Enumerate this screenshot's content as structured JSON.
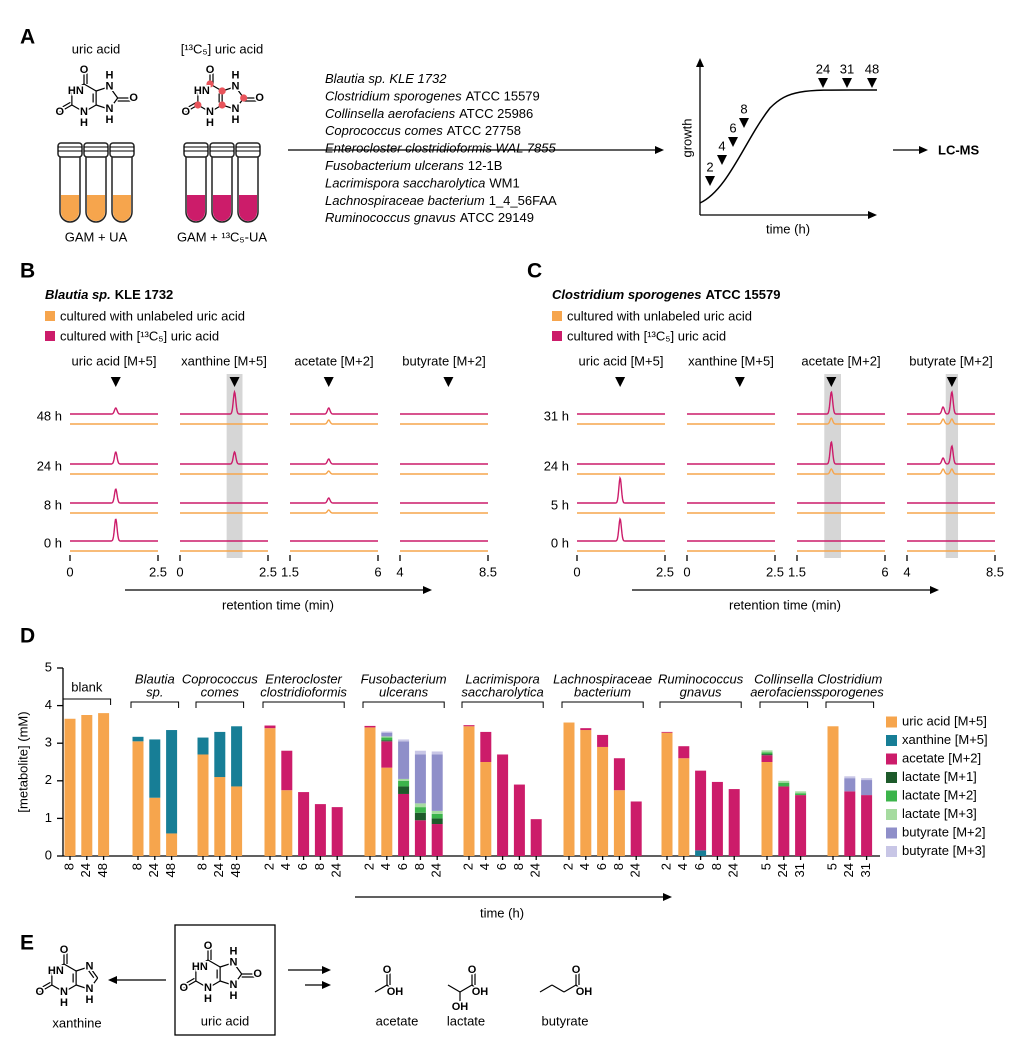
{
  "panel_a": {
    "label": "A",
    "uric_acid": "uric acid",
    "labeled_uric_acid": "[¹³C₅] uric acid",
    "medium_unlabeled": "GAM + UA",
    "medium_labeled": "GAM + ¹³C₅-UA",
    "organisms": [
      {
        "name": "Blautia sp. KLE 1732"
      },
      {
        "name": "Clostridium sporogenes",
        "strain": "ATCC 15579"
      },
      {
        "name": "Collinsella aerofaciens",
        "strain": "ATCC 25986"
      },
      {
        "name": "Coprococcus comes",
        "strain": "ATCC 27758"
      },
      {
        "name": "Enterocloster clostridioformis WAL 7855"
      },
      {
        "name": "Fusobacterium ulcerans",
        "strain": "12-1B"
      },
      {
        "name": "Lacrimispora saccharolytica",
        "strain": "WM1"
      },
      {
        "name": "Lachnospiraceae bacterium",
        "strain": "1_4_56FAA"
      },
      {
        "name": "Ruminococcus gnavus",
        "strain": "ATCC 29149"
      }
    ],
    "growth_axis": "growth",
    "time_axis": "time (h)",
    "timepoints": [
      2,
      4,
      6,
      8,
      24,
      31,
      48
    ],
    "output": "LC-MS"
  },
  "molecules": {
    "uric_acid": [
      "O",
      "HN",
      "O",
      "N",
      "H",
      "N",
      "H",
      "O",
      "N",
      "H"
    ],
    "xanthine": [
      "O",
      "HN",
      "O",
      "N",
      "H",
      "N",
      "N",
      "H"
    ],
    "acetate": [
      "O",
      "OH"
    ],
    "lactate": [
      "O",
      "OH",
      "OH"
    ],
    "butyrate": [
      "O",
      "OH"
    ]
  },
  "panel_b": {
    "label": "B",
    "title": {
      "name": "Blautia sp.",
      "strain": "KLE 1732"
    },
    "legend": [
      "cultured with unlabeled uric acid",
      "cultured with [¹³C₅] uric acid"
    ],
    "columns": [
      {
        "label": "uric acid [M+5]",
        "xlim": [
          0,
          2.5
        ]
      },
      {
        "label": "xanthine [M+5]",
        "xlim": [
          0,
          2.5
        ]
      },
      {
        "label": "acetate [M+2]",
        "xlim": [
          1.5,
          6
        ]
      },
      {
        "label": "butyrate [M+2]",
        "xlim": [
          4,
          8.5
        ]
      }
    ],
    "rows": [
      "48 h",
      "24 h",
      "8 h",
      "0 h"
    ],
    "x_label": "retention time (min)"
  },
  "panel_c": {
    "label": "C",
    "title": {
      "name": "Clostridium sporogenes",
      "strain": "ATCC 15579"
    },
    "legend": [
      "cultured with unlabeled uric acid",
      "cultured with [¹³C₅] uric acid"
    ],
    "columns": [
      {
        "label": "uric acid [M+5]",
        "xlim": [
          0,
          2.5
        ]
      },
      {
        "label": "xanthine [M+5]",
        "xlim": [
          0,
          2.5
        ]
      },
      {
        "label": "acetate [M+2]",
        "xlim": [
          1.5,
          6
        ]
      },
      {
        "label": "butyrate [M+2]",
        "xlim": [
          4,
          8.5
        ]
      }
    ],
    "rows": [
      "31 h",
      "24 h",
      "5 h",
      "0 h"
    ],
    "x_label": "retention time (min)"
  },
  "panel_d_label": "D",
  "chart_data": {
    "type": "bar",
    "stacked": true,
    "x_label": "time (h)",
    "y_label": "[metabolite] (mM)",
    "ylim": [
      0,
      5
    ],
    "yticks": [
      0,
      1,
      2,
      3,
      4,
      5
    ],
    "groups": [
      {
        "label": [
          "blank"
        ],
        "categories": [
          8,
          24,
          48
        ]
      },
      {
        "label": [
          "Blautia",
          "sp."
        ],
        "categories": [
          8,
          24,
          48
        ]
      },
      {
        "label": [
          "Coprococcus",
          "comes"
        ],
        "categories": [
          8,
          24,
          48
        ]
      },
      {
        "label": [
          "Enterocloster",
          "clostridioformis"
        ],
        "categories": [
          2,
          4,
          6,
          8,
          24
        ]
      },
      {
        "label": [
          "Fusobacterium",
          "ulcerans"
        ],
        "categories": [
          2,
          4,
          6,
          8,
          24
        ]
      },
      {
        "label": [
          "Lacrimispora",
          "saccharolytica"
        ],
        "categories": [
          2,
          4,
          6,
          8,
          24
        ]
      },
      {
        "label": [
          "Lachnospiraceae",
          "bacterium"
        ],
        "categories": [
          2,
          4,
          6,
          8,
          24
        ]
      },
      {
        "label": [
          "Ruminococcus",
          "gnavus"
        ],
        "categories": [
          2,
          4,
          6,
          8,
          24
        ]
      },
      {
        "label": [
          "Collinsella",
          "aerofaciens"
        ],
        "categories": [
          5,
          24,
          31
        ]
      },
      {
        "label": [
          "Clostridium",
          "sporogenes"
        ],
        "categories": [
          5,
          24,
          31
        ]
      }
    ],
    "series": [
      {
        "name": "uric acid [M+5]",
        "color": "#f6a54d",
        "values": [
          3.65,
          3.75,
          3.8,
          3.05,
          1.55,
          0.6,
          2.7,
          2.1,
          1.85,
          3.4,
          1.75,
          null,
          null,
          null,
          3.42,
          2.35,
          null,
          null,
          null,
          3.45,
          2.5,
          null,
          null,
          null,
          3.55,
          3.35,
          2.9,
          1.75,
          null,
          3.28,
          2.6,
          null,
          null,
          null,
          2.5,
          null,
          null,
          3.45,
          null,
          null
        ]
      },
      {
        "name": "xanthine [M+5]",
        "color": "#177e96",
        "values": [
          null,
          null,
          null,
          0.12,
          1.55,
          2.75,
          0.45,
          1.2,
          1.6,
          null,
          null,
          null,
          null,
          null,
          null,
          null,
          null,
          null,
          null,
          null,
          null,
          null,
          null,
          null,
          null,
          null,
          null,
          null,
          null,
          null,
          null,
          0.15,
          null,
          null,
          null,
          null,
          null,
          null,
          null,
          null
        ]
      },
      {
        "name": "acetate [M+2]",
        "color": "#cc1c6a",
        "values": [
          null,
          null,
          null,
          null,
          null,
          null,
          null,
          null,
          null,
          0.07,
          1.05,
          1.7,
          1.38,
          1.3,
          0.04,
          0.7,
          1.65,
          0.95,
          0.85,
          0.03,
          0.8,
          2.7,
          1.9,
          0.98,
          null,
          0.05,
          0.32,
          0.85,
          1.45,
          0.02,
          0.32,
          2.12,
          1.97,
          1.78,
          0.18,
          1.85,
          1.62,
          null,
          1.72,
          1.62
        ]
      },
      {
        "name": "lactate [M+1]",
        "color": "#1d5a2a",
        "values": [
          null,
          null,
          null,
          null,
          null,
          null,
          null,
          null,
          null,
          null,
          null,
          null,
          null,
          null,
          null,
          0.03,
          0.2,
          0.2,
          0.15,
          null,
          null,
          null,
          null,
          null,
          null,
          null,
          null,
          null,
          null,
          null,
          null,
          null,
          null,
          null,
          0.03,
          null,
          null,
          null,
          null,
          null
        ]
      },
      {
        "name": "lactate [M+2]",
        "color": "#3cb44b",
        "values": [
          null,
          null,
          null,
          null,
          null,
          null,
          null,
          null,
          null,
          null,
          null,
          null,
          null,
          null,
          null,
          0.07,
          0.15,
          0.15,
          0.12,
          null,
          null,
          null,
          null,
          null,
          null,
          null,
          null,
          null,
          null,
          null,
          null,
          null,
          null,
          null,
          0.05,
          0.1,
          0.05,
          null,
          null,
          null
        ]
      },
      {
        "name": "lactate [M+3]",
        "color": "#a6dba0",
        "values": [
          null,
          null,
          null,
          null,
          null,
          null,
          null,
          null,
          null,
          null,
          null,
          null,
          null,
          null,
          null,
          0.03,
          0.05,
          0.1,
          0.08,
          null,
          null,
          null,
          null,
          null,
          null,
          null,
          null,
          null,
          null,
          null,
          null,
          null,
          null,
          null,
          0.05,
          0.05,
          0.05,
          null,
          null,
          null
        ]
      },
      {
        "name": "butyrate [M+2]",
        "color": "#8f8fc9",
        "values": [
          null,
          null,
          null,
          null,
          null,
          null,
          null,
          null,
          null,
          null,
          null,
          null,
          null,
          null,
          null,
          0.1,
          1.0,
          1.3,
          1.5,
          null,
          null,
          null,
          null,
          null,
          null,
          null,
          null,
          null,
          null,
          null,
          null,
          null,
          null,
          null,
          null,
          null,
          null,
          null,
          0.35,
          0.4
        ]
      },
      {
        "name": "butyrate [M+3]",
        "color": "#c8c6e6",
        "values": [
          null,
          null,
          null,
          null,
          null,
          null,
          null,
          null,
          null,
          null,
          null,
          null,
          null,
          null,
          null,
          0.03,
          0.05,
          0.1,
          0.08,
          null,
          null,
          null,
          null,
          null,
          null,
          null,
          null,
          null,
          null,
          null,
          null,
          null,
          null,
          null,
          null,
          null,
          null,
          null,
          0.05,
          0.05
        ]
      }
    ]
  },
  "panel_e": {
    "label": "E",
    "xanthine": "xanthine",
    "uric_acid": "uric acid",
    "acetate": "acetate",
    "lactate": "lactate",
    "butyrate": "butyrate"
  }
}
